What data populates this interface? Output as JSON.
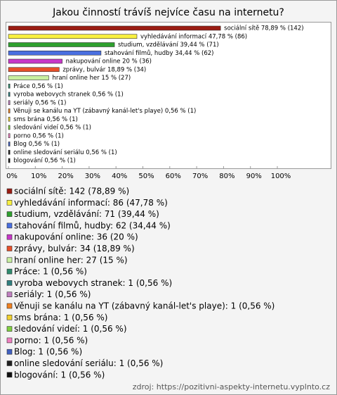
{
  "chart_data": {
    "type": "bar",
    "orientation": "horizontal",
    "title": "Jakou činností trávíš nejvíce času na internetu?",
    "categories": [
      "sociální sítě",
      "vyhledávání informací",
      "studium, vzdělávání",
      "stahování filmů, hudby",
      "nakupování online",
      "zprávy, bulvár",
      "hraní online her",
      "Práce",
      "vyroba webovych stranek",
      "seriály",
      "Věnuji se kanálu na YT (zábavný kanál-let's playe)",
      "sms brána",
      "sledování videí",
      "porno",
      "Blog",
      "online sledování seriálu",
      "blogování"
    ],
    "values": [
      78.89,
      47.78,
      39.44,
      34.44,
      20,
      18.89,
      15,
      0.56,
      0.56,
      0.56,
      0.56,
      0.56,
      0.56,
      0.56,
      0.56,
      0.56,
      0.56
    ],
    "value_labels": [
      "sociální sítě 78,89 % (142)",
      "vyhledávání informací 47,78 % (86)",
      "studium, vzdělávání 39,44 % (71)",
      "stahování filmů, hudby 34,44 % (62)",
      "nakupování online 20 % (36)",
      "zprávy, bulvár 18,89 % (34)",
      "hraní online her 15 % (27)",
      "Práce 0,56 % (1)",
      "vyroba webovych stranek 0,56 % (1)",
      "seriály 0,56 % (1)",
      "Věnuji se kanálu na YT (zábavný kanál-let's playe) 0,56 % (1)",
      "sms brána 0,56 % (1)",
      "sledování videí 0,56 % (1)",
      "porno 0,56 % (1)",
      "Blog 0,56 % (1)",
      "online sledování seriálu 0,56 % (1)",
      "blogování 0,56 % (1)"
    ],
    "legend_labels": [
      "sociální sítě: 142 (78,89 %)",
      "vyhledávání informací: 86 (47,78 %)",
      "studium, vzdělávání: 71 (39,44 %)",
      "stahování filmů, hudby: 62 (34,44 %)",
      "nakupování online: 36 (20 %)",
      "zprávy, bulvár: 34 (18,89 %)",
      "hraní online her: 27 (15 %)",
      "Práce: 1 (0,56 %)",
      "vyroba webovych stranek: 1 (0,56 %)",
      "seriály: 1 (0,56 %)",
      "Věnuji se kanálu na YT (zábavný kanál-let's playe): 1 (0,56 %)",
      "sms brána: 1 (0,56 %)",
      "sledování videí: 1 (0,56 %)",
      "porno: 1 (0,56 %)",
      "Blog: 1 (0,56 %)",
      "online sledování seriálu: 1 (0,56 %)",
      "blogování: 1 (0,56 %)"
    ],
    "colors": [
      "#9b1c12",
      "#f8f040",
      "#2ea02e",
      "#4a6fe0",
      "#c838c8",
      "#e8502a",
      "#c8f0a0",
      "#2e8b6e",
      "#2f7f7f",
      "#c080c0",
      "#f08020",
      "#f0d030",
      "#80d040",
      "#f080c0",
      "#4060c0",
      "#202020",
      "#101010"
    ],
    "xlim": [
      0,
      100
    ],
    "xticks": [
      {
        "value": 0,
        "label": "0%"
      },
      {
        "value": 10,
        "label": "10%"
      },
      {
        "value": 20,
        "label": "20%"
      },
      {
        "value": 30,
        "label": "30%"
      },
      {
        "value": 40,
        "label": "40%"
      },
      {
        "value": 50,
        "label": "50%"
      },
      {
        "value": 60,
        "label": "60%"
      },
      {
        "value": 70,
        "label": "70%"
      },
      {
        "value": 80,
        "label": "80%"
      },
      {
        "value": 90,
        "label": "90%"
      },
      {
        "value": 100,
        "label": "100%"
      }
    ],
    "source": "zdroj: https://pozitivni-aspekty-internetu.vyplnto.cz"
  }
}
